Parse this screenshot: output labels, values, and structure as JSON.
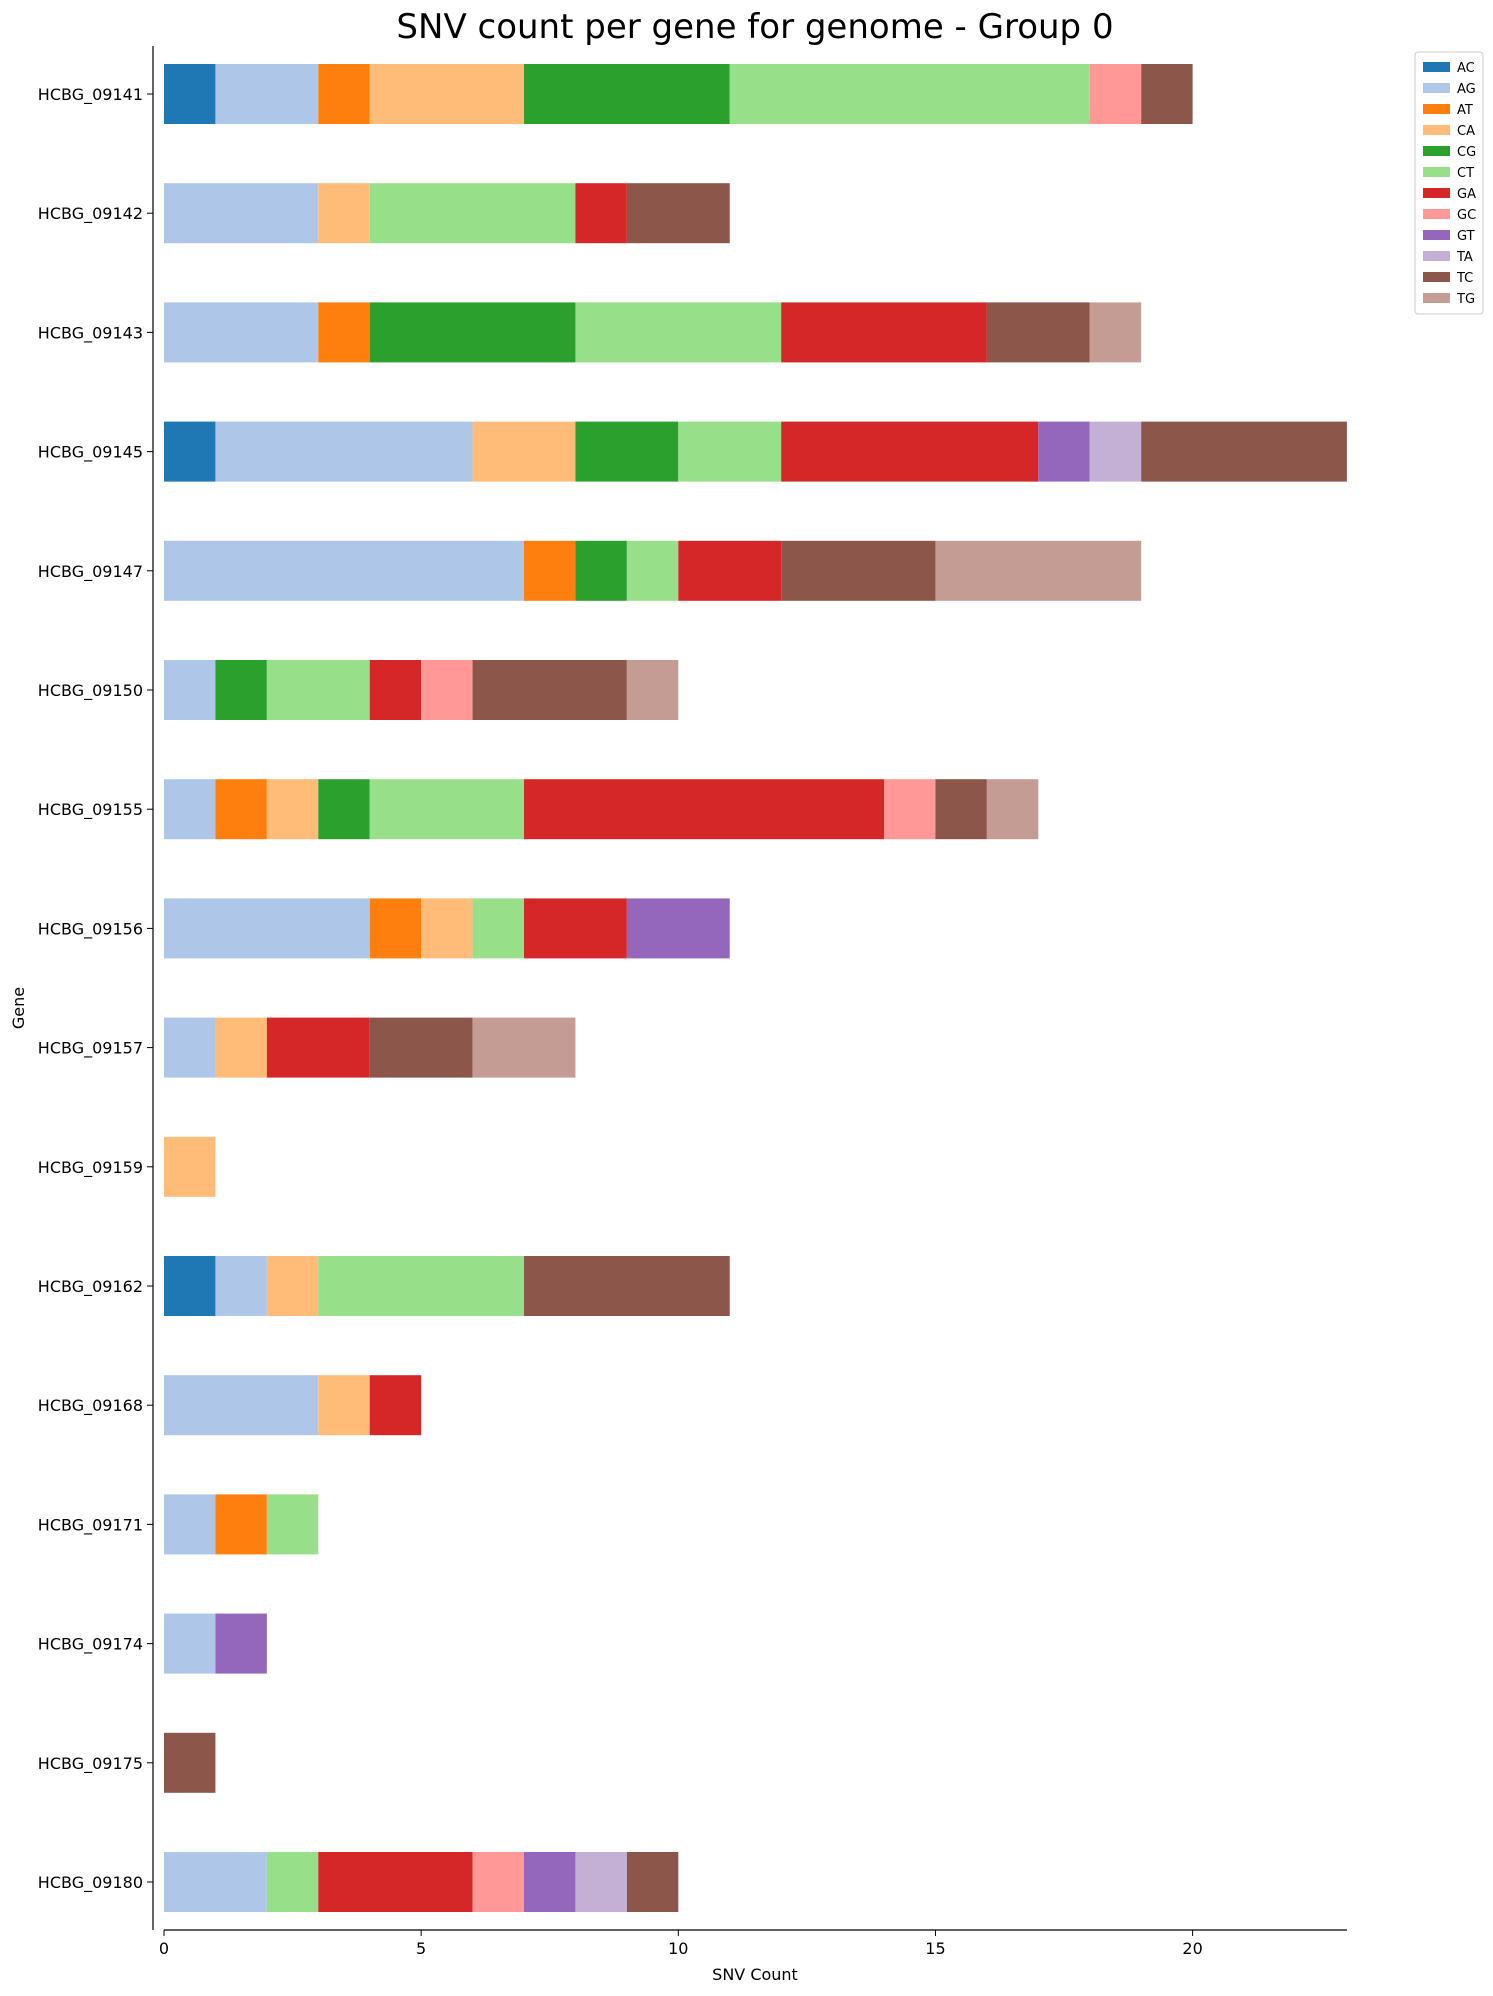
{
  "chart_data": {
    "type": "bar",
    "orientation": "horizontal",
    "stacked": true,
    "title": "SNV count per gene for genome - Group 0",
    "xlabel": "SNV Count",
    "ylabel": "Gene",
    "xlim": [
      0,
      23
    ],
    "xticks": [
      0,
      5,
      10,
      15,
      20
    ],
    "grid": false,
    "legend_position": "top-right outside",
    "categories": [
      "HCBG_09141",
      "HCBG_09142",
      "HCBG_09143",
      "HCBG_09145",
      "HCBG_09147",
      "HCBG_09150",
      "HCBG_09155",
      "HCBG_09156",
      "HCBG_09157",
      "HCBG_09159",
      "HCBG_09162",
      "HCBG_09168",
      "HCBG_09171",
      "HCBG_09174",
      "HCBG_09175",
      "HCBG_09180"
    ],
    "series": [
      {
        "name": "AC",
        "color": "#1f77b4",
        "values": [
          1,
          0,
          0,
          1,
          0,
          0,
          0,
          0,
          0,
          0,
          1,
          0,
          0,
          0,
          0,
          0
        ]
      },
      {
        "name": "AG",
        "color": "#aec7e8",
        "values": [
          2,
          3,
          3,
          5,
          7,
          1,
          1,
          4,
          1,
          0,
          1,
          3,
          1,
          1,
          0,
          2
        ]
      },
      {
        "name": "AT",
        "color": "#ff7f0e",
        "values": [
          1,
          0,
          1,
          0,
          1,
          0,
          1,
          1,
          0,
          0,
          0,
          0,
          1,
          0,
          0,
          0
        ]
      },
      {
        "name": "CA",
        "color": "#ffbb78",
        "values": [
          3,
          1,
          0,
          2,
          0,
          0,
          1,
          1,
          1,
          1,
          1,
          1,
          0,
          0,
          0,
          0
        ]
      },
      {
        "name": "CG",
        "color": "#2ca02c",
        "values": [
          4,
          0,
          4,
          2,
          1,
          1,
          1,
          0,
          0,
          0,
          0,
          0,
          0,
          0,
          0,
          0
        ]
      },
      {
        "name": "CT",
        "color": "#98df8a",
        "values": [
          7,
          4,
          4,
          2,
          1,
          2,
          3,
          1,
          0,
          0,
          4,
          0,
          1,
          0,
          0,
          1
        ]
      },
      {
        "name": "GA",
        "color": "#d62728",
        "values": [
          0,
          1,
          4,
          5,
          2,
          1,
          7,
          2,
          2,
          0,
          0,
          1,
          0,
          0,
          0,
          3
        ]
      },
      {
        "name": "GC",
        "color": "#ff9896",
        "values": [
          1,
          0,
          0,
          0,
          0,
          1,
          1,
          0,
          0,
          0,
          0,
          0,
          0,
          0,
          0,
          1
        ]
      },
      {
        "name": "GT",
        "color": "#9467bd",
        "values": [
          0,
          0,
          0,
          1,
          0,
          0,
          0,
          2,
          0,
          0,
          0,
          0,
          0,
          1,
          0,
          1
        ]
      },
      {
        "name": "TA",
        "color": "#c5b0d5",
        "values": [
          0,
          0,
          0,
          1,
          0,
          0,
          0,
          0,
          0,
          0,
          0,
          0,
          0,
          0,
          0,
          1
        ]
      },
      {
        "name": "TC",
        "color": "#8c564b",
        "values": [
          1,
          2,
          2,
          4,
          3,
          3,
          1,
          0,
          2,
          0,
          4,
          0,
          0,
          0,
          1,
          1
        ]
      },
      {
        "name": "TG",
        "color": "#c49c94",
        "values": [
          0,
          0,
          1,
          0,
          4,
          1,
          1,
          0,
          2,
          0,
          0,
          0,
          0,
          0,
          0,
          0
        ]
      }
    ]
  }
}
